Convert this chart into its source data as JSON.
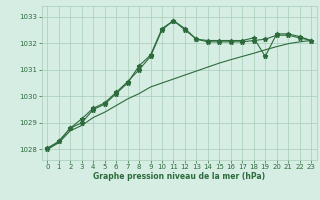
{
  "x": [
    0,
    1,
    2,
    3,
    4,
    5,
    6,
    7,
    8,
    9,
    10,
    11,
    12,
    13,
    14,
    15,
    16,
    17,
    18,
    19,
    20,
    21,
    22,
    23
  ],
  "line1": [
    1028.0,
    1028.3,
    1028.8,
    1029.0,
    1029.5,
    1029.7,
    1030.1,
    1030.5,
    1031.15,
    1031.55,
    1032.55,
    1032.85,
    1032.55,
    1032.15,
    1032.05,
    1032.05,
    1032.05,
    1032.05,
    1032.1,
    1032.15,
    1032.3,
    1032.3,
    1032.2,
    1032.1
  ],
  "line2": [
    1028.05,
    1028.3,
    1028.8,
    1029.15,
    1029.55,
    1029.75,
    1030.15,
    1030.55,
    1031.0,
    1031.5,
    1032.5,
    1032.85,
    1032.5,
    1032.15,
    1032.1,
    1032.1,
    1032.1,
    1032.1,
    1032.2,
    1031.5,
    1032.35,
    1032.35,
    1032.25,
    1032.1
  ],
  "line3": [
    1028.0,
    1028.25,
    1028.7,
    1028.9,
    1029.2,
    1029.4,
    1029.65,
    1029.9,
    1030.1,
    1030.35,
    1030.5,
    1030.65,
    1030.8,
    1030.95,
    1031.1,
    1031.25,
    1031.38,
    1031.5,
    1031.62,
    1031.75,
    1031.87,
    1031.98,
    1032.05,
    1032.1
  ],
  "background_color": "#d5ede3",
  "grid_color": "#a8cdb8",
  "line_color": "#2d6b3c",
  "xlabel": "Graphe pression niveau de la mer (hPa)",
  "ylim": [
    1027.6,
    1033.4
  ],
  "xlim": [
    -0.5,
    23.5
  ],
  "yticks": [
    1028,
    1029,
    1030,
    1031,
    1032,
    1033
  ],
  "xticks": [
    0,
    1,
    2,
    3,
    4,
    5,
    6,
    7,
    8,
    9,
    10,
    11,
    12,
    13,
    14,
    15,
    16,
    17,
    18,
    19,
    20,
    21,
    22,
    23
  ]
}
